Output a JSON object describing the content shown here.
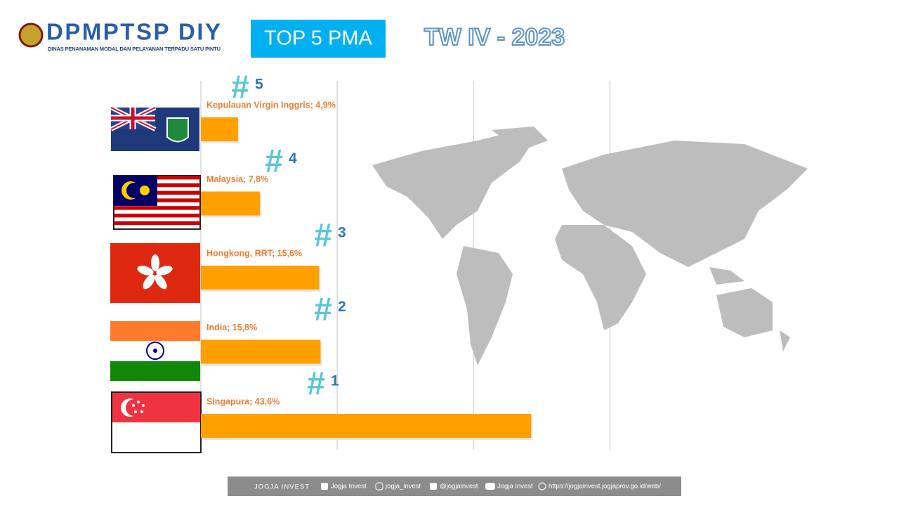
{
  "header": {
    "logo_title": "DPMPTSP DIY",
    "logo_subtitle": "DINAS PENANAMAN MODAL DAN PELAYANAN TERPADU SATU PINTU",
    "badge": "TOP 5 PMA",
    "period": "TW IV - 2023"
  },
  "chart_data": {
    "type": "bar",
    "orientation": "horizontal",
    "categories": [
      "Kepulauan Virgin Inggris",
      "Malaysia",
      "Hongkong, RRT",
      "India",
      "Singapura"
    ],
    "values": [
      4.9,
      7.8,
      15.6,
      15.8,
      43.6
    ],
    "value_labels": [
      "Kepulauan Virgin Inggris; 4,9%",
      "Malaysia; 7,8%",
      "Hongkong, RRT; 15,6%",
      "India; 15,8%",
      "Singapura; 43,6%"
    ],
    "rank_symbol": "#",
    "ranks": [
      "5",
      "4",
      "3",
      "2",
      "1"
    ],
    "color": "#ffa000",
    "xlim": [
      0,
      56
    ],
    "xticks": [
      0,
      18,
      36,
      54
    ],
    "grid": true
  },
  "footer": {
    "brand": "JOGJA INVEST",
    "facebook": "Jogja Invest",
    "instagram": "jogja_invest",
    "twitter": "@jogjainvest",
    "youtube": "Jogja Invest",
    "website": "https://jogjainvest.jogjaprov.go.id/web/"
  }
}
